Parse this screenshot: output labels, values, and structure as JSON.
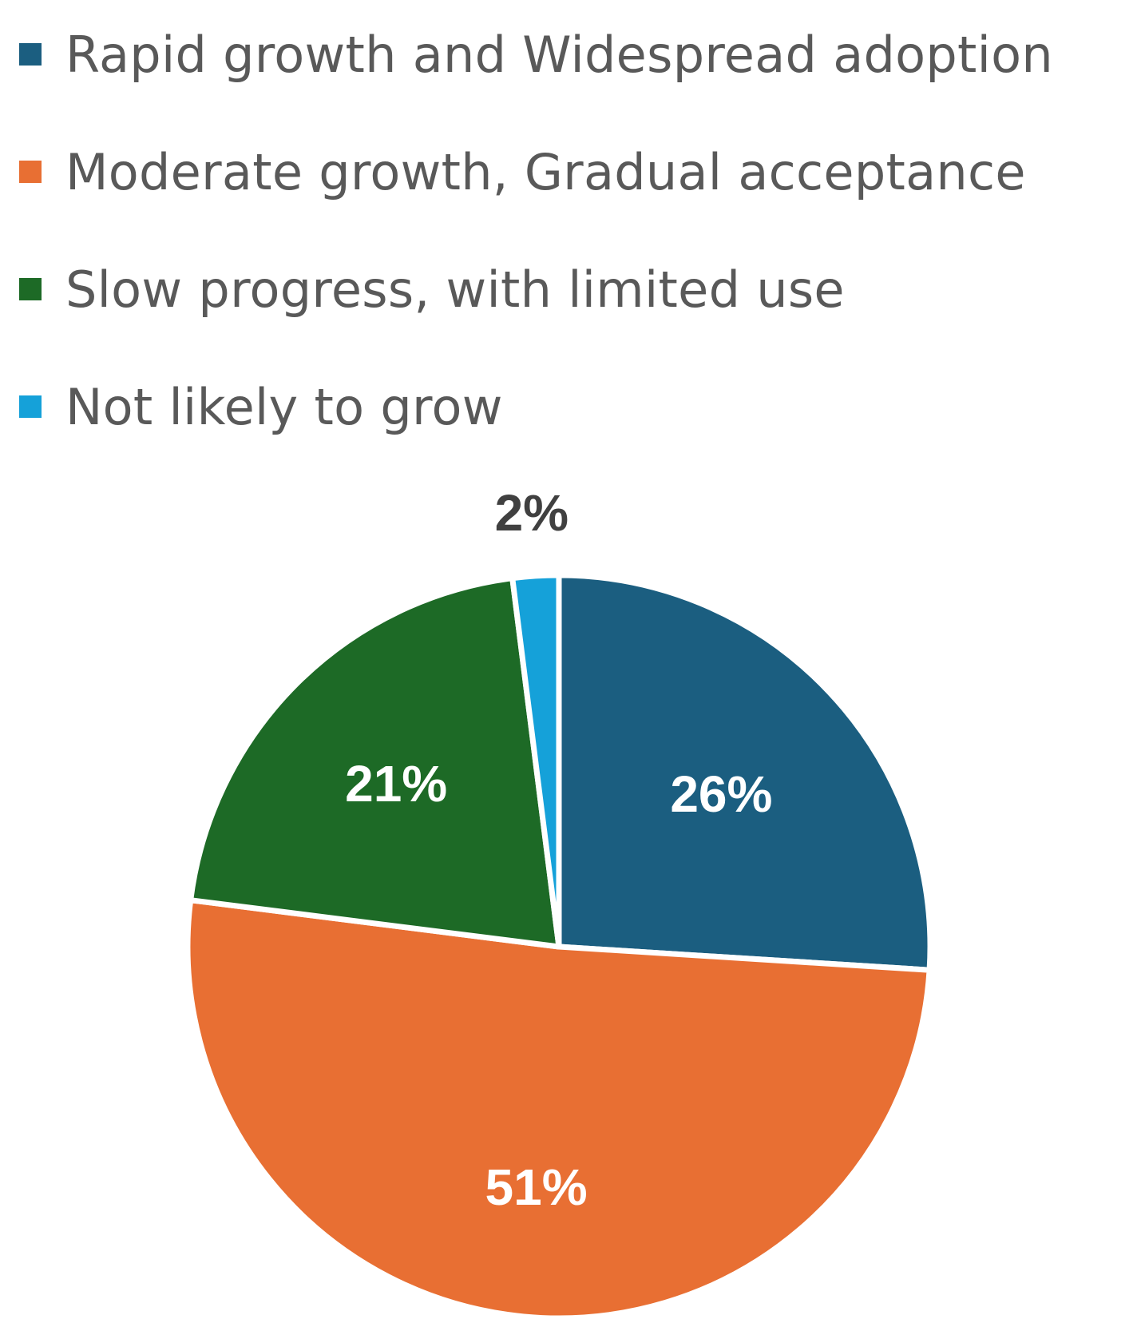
{
  "chart_data": {
    "type": "pie",
    "title": "",
    "legend_position": "top",
    "slices": [
      {
        "name": "Rapid growth and Widespread adoption",
        "value": 26,
        "label": "26%",
        "color": "#1b5e80",
        "label_color": "#ffffff"
      },
      {
        "name": "Moderate growth, Gradual acceptance",
        "value": 51,
        "label": "51%",
        "color": "#e86f33",
        "label_color": "#ffffff"
      },
      {
        "name": "Slow progress, with limited use",
        "value": 21,
        "label": "21%",
        "color": "#1d6a26",
        "label_color": "#ffffff"
      },
      {
        "name": "Not likely to grow",
        "value": 2,
        "label": "2%",
        "color": "#15a1d9",
        "label_color": "#404040"
      }
    ]
  }
}
